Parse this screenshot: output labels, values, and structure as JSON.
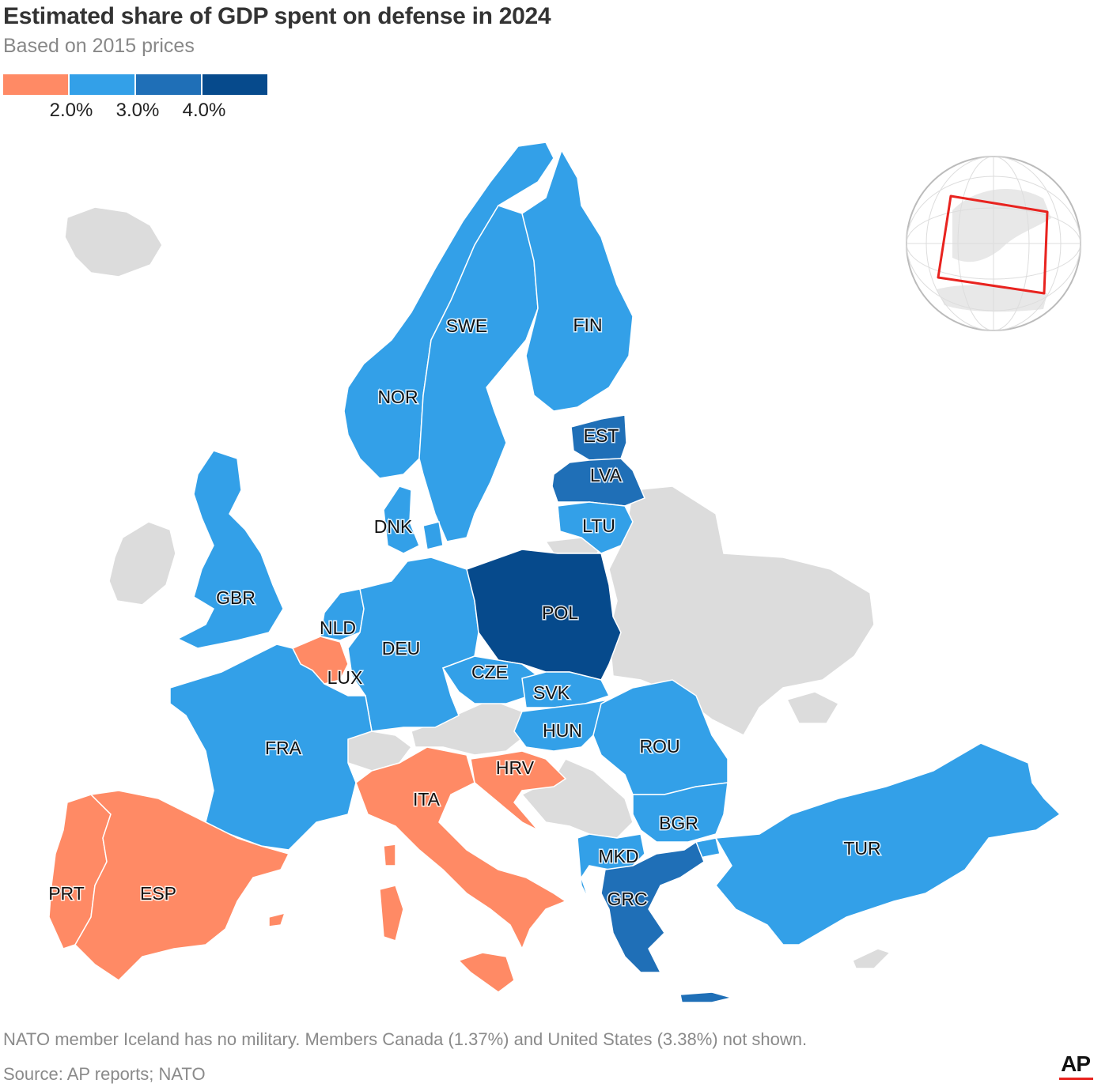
{
  "title": "Estimated share of GDP spent on defense in 2024",
  "subtitle": "Based on 2015 prices",
  "legend": {
    "ticks": [
      "2.0%",
      "3.0%",
      "4.0%"
    ],
    "bins": [
      {
        "range": "< 2.0%",
        "color": "#ff8a65"
      },
      {
        "range": "2.0% – 3.0%",
        "color": "#33a0e8"
      },
      {
        "range": "3.0% – 4.0%",
        "color": "#1f6fb7"
      },
      {
        "range": "> 4.0%",
        "color": "#064a8c"
      }
    ]
  },
  "colors": {
    "below_2": "#ff8a65",
    "2_to_3": "#33a0e8",
    "3_to_4": "#1f6fb7",
    "above_4": "#064a8c",
    "no_data": "#dcdcdc",
    "sea": "#ffffff",
    "border": "#ffffff",
    "locator_frame": "#e8231f"
  },
  "countries": [
    {
      "code": "NOR",
      "bin": "2_to_3"
    },
    {
      "code": "SWE",
      "bin": "2_to_3"
    },
    {
      "code": "FIN",
      "bin": "2_to_3"
    },
    {
      "code": "EST",
      "bin": "3_to_4"
    },
    {
      "code": "LVA",
      "bin": "3_to_4"
    },
    {
      "code": "LTU",
      "bin": "2_to_3"
    },
    {
      "code": "DNK",
      "bin": "2_to_3"
    },
    {
      "code": "GBR",
      "bin": "2_to_3"
    },
    {
      "code": "NLD",
      "bin": "2_to_3"
    },
    {
      "code": "DEU",
      "bin": "2_to_3"
    },
    {
      "code": "POL",
      "bin": "above_4"
    },
    {
      "code": "LUX",
      "bin": "below_2"
    },
    {
      "code": "CZE",
      "bin": "2_to_3"
    },
    {
      "code": "SVK",
      "bin": "2_to_3"
    },
    {
      "code": "HUN",
      "bin": "2_to_3"
    },
    {
      "code": "FRA",
      "bin": "2_to_3"
    },
    {
      "code": "ROU",
      "bin": "2_to_3"
    },
    {
      "code": "HRV",
      "bin": "below_2"
    },
    {
      "code": "ITA",
      "bin": "below_2"
    },
    {
      "code": "BGR",
      "bin": "2_to_3"
    },
    {
      "code": "TUR",
      "bin": "2_to_3"
    },
    {
      "code": "MKD",
      "bin": "2_to_3"
    },
    {
      "code": "PRT",
      "bin": "below_2"
    },
    {
      "code": "ESP",
      "bin": "below_2"
    },
    {
      "code": "GRC",
      "bin": "3_to_4"
    }
  ],
  "note": "NATO member Iceland has no military. Members Canada (1.37%) and United States (3.38%) not shown.",
  "source": "Source: AP reports; NATO",
  "logo": "AP"
}
